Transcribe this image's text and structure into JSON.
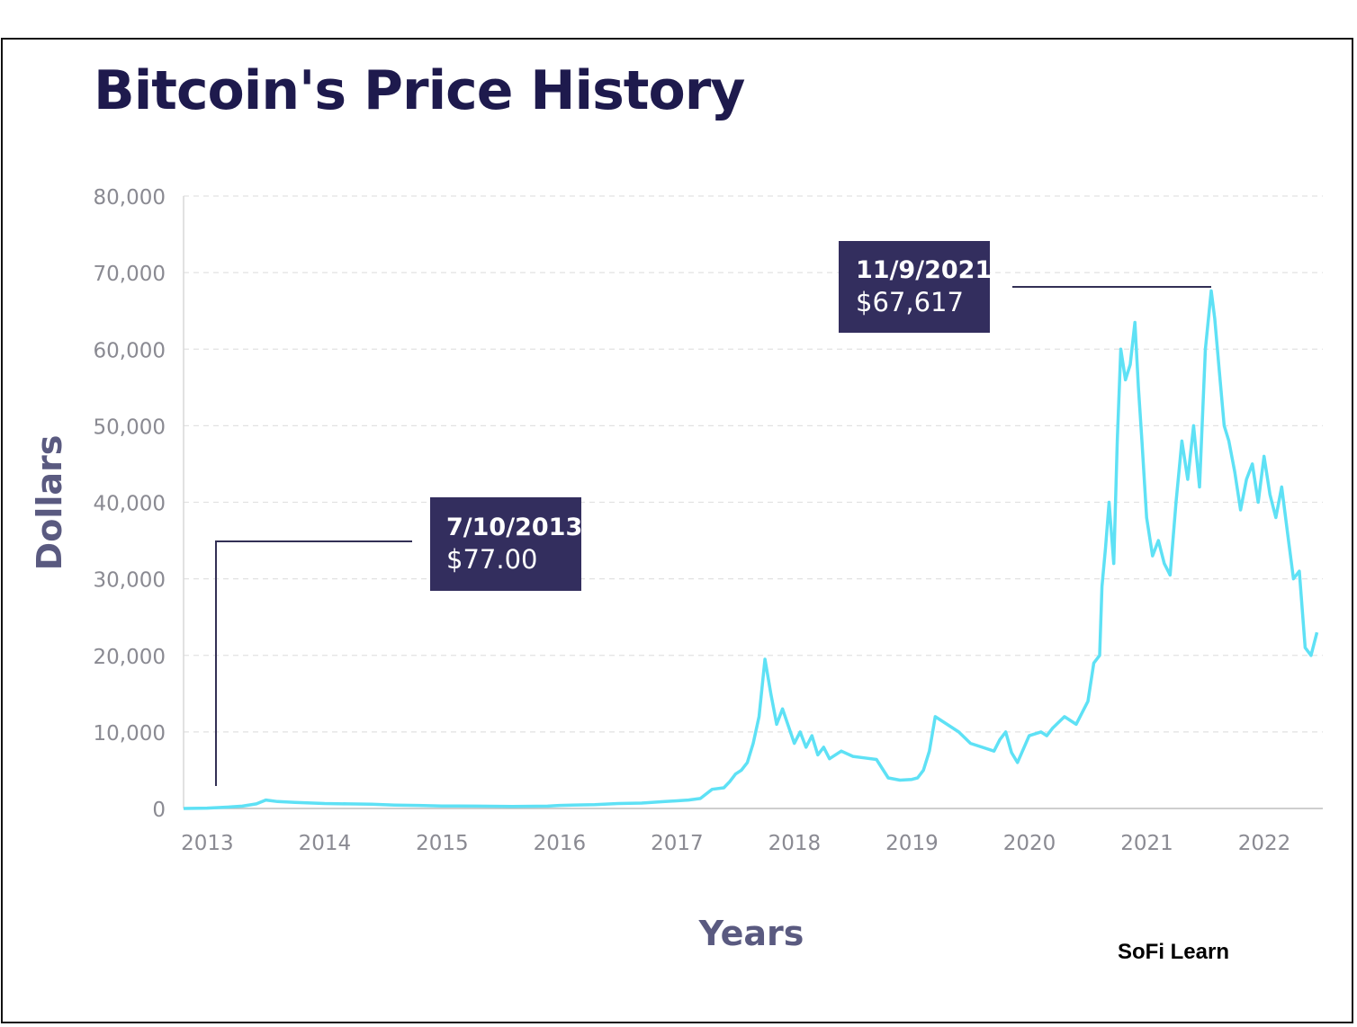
{
  "title": "Bitcoin's Price History",
  "brand": "SoFi Learn",
  "colors": {
    "line": "#5ee1f5",
    "title": "#1e1a4d",
    "axis_title": "#5a5a80",
    "callout_bg": "#332e5e",
    "leader": "#333055",
    "grid": "#e2e2e2"
  },
  "chart_data": {
    "type": "line",
    "title": "Bitcoin's Price History",
    "xlabel": "Years",
    "ylabel": "Dollars",
    "xlim": [
      2012.8,
      2022.5
    ],
    "ylim": [
      0,
      80000
    ],
    "grid": "horizontal dashed",
    "x_ticks": [
      "2013",
      "2014",
      "2015",
      "2016",
      "2017",
      "2018",
      "2019",
      "2020",
      "2021",
      "2022"
    ],
    "y_ticks": [
      "0",
      "10,000",
      "20,000",
      "30,000",
      "40,000",
      "50,000",
      "60,000",
      "70,000",
      "80,000"
    ],
    "series": [
      {
        "x": [
          2012.8,
          2013.0,
          2013.2,
          2013.3,
          2013.42,
          2013.5,
          2013.6,
          2013.75,
          2013.9,
          2014.0,
          2014.2,
          2014.4,
          2014.6,
          2014.8,
          2015.0,
          2015.3,
          2015.6,
          2015.9,
          2016.0,
          2016.3,
          2016.5,
          2016.7,
          2016.9,
          2017.0,
          2017.1,
          2017.2,
          2017.3,
          2017.4,
          2017.45,
          2017.5,
          2017.55,
          2017.6,
          2017.65,
          2017.7,
          2017.75,
          2017.8,
          2017.85,
          2017.9,
          2018.0,
          2018.05,
          2018.1,
          2018.15,
          2018.2,
          2018.25,
          2018.3,
          2018.4,
          2018.5,
          2018.6,
          2018.7,
          2018.8,
          2018.9,
          2019.0,
          2019.05,
          2019.1,
          2019.15,
          2019.2,
          2019.3,
          2019.4,
          2019.5,
          2019.6,
          2019.7,
          2019.75,
          2019.8,
          2019.85,
          2019.9,
          2020.0,
          2020.1,
          2020.15,
          2020.2,
          2020.3,
          2020.4,
          2020.5,
          2020.55,
          2020.6,
          2020.62,
          2020.65,
          2020.68,
          2020.72,
          2020.75,
          2020.78,
          2020.82,
          2020.86,
          2020.9,
          2020.93,
          2020.96,
          2021.0,
          2021.05,
          2021.1,
          2021.15,
          2021.2,
          2021.25,
          2021.3,
          2021.35,
          2021.4,
          2021.45,
          2021.5,
          2021.55,
          2021.58,
          2021.62,
          2021.66,
          2021.7,
          2021.75,
          2021.8,
          2021.85,
          2021.9,
          2021.95,
          2022.0,
          2022.05,
          2022.1,
          2022.15,
          2022.2,
          2022.25,
          2022.3,
          2022.35,
          2022.4,
          2022.45
        ],
        "y": [
          0,
          50,
          200,
          300,
          600,
          1100,
          900,
          800,
          700,
          650,
          600,
          550,
          450,
          400,
          330,
          300,
          260,
          300,
          400,
          500,
          650,
          700,
          900,
          1000,
          1100,
          1300,
          2500,
          2700,
          3500,
          4500,
          5000,
          6000,
          8500,
          12000,
          19500,
          15000,
          11000,
          13000,
          8500,
          10000,
          8000,
          9500,
          7000,
          8000,
          6500,
          7500,
          6800,
          6600,
          6400,
          4000,
          3700,
          3800,
          4000,
          5000,
          7500,
          12000,
          11000,
          10000,
          8500,
          8000,
          7500,
          9000,
          10000,
          7300,
          6000,
          9500,
          10000,
          9500,
          10500,
          12000,
          11000,
          14000,
          19000,
          20000,
          29000,
          34000,
          40000,
          32000,
          48000,
          60000,
          56000,
          58000,
          63500,
          55000,
          48000,
          38000,
          33000,
          35000,
          32000,
          30500,
          40000,
          48000,
          43000,
          50000,
          42000,
          60000,
          67617,
          64000,
          57000,
          50000,
          48000,
          44000,
          39000,
          43000,
          45000,
          40000,
          46000,
          41000,
          38000,
          42000,
          36000,
          30000,
          31000,
          21000,
          20000,
          23000
        ]
      }
    ],
    "annotations": [
      {
        "label": "7/10/2013",
        "value": "$77.00"
      },
      {
        "label": "11/9/2021",
        "value": "$67,617"
      }
    ]
  }
}
